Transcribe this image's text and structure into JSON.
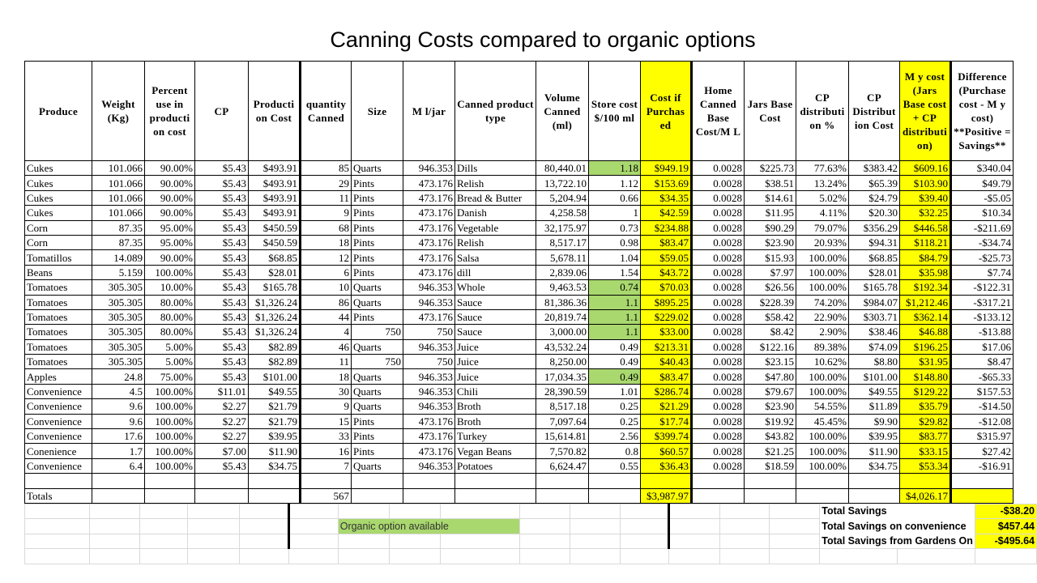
{
  "title": "Canning Costs compared to organic options",
  "colors": {
    "highlight_yellow": "#ffff00",
    "organic_green": "#a9d86e"
  },
  "columns": [
    "Produce",
    "Weight (Kg)",
    "Percent use in producti on cost",
    "CP",
    "Producti on Cost",
    "quantity Canned",
    "Size",
    "M l/jar",
    "Canned product type",
    "Volume Canned (ml)",
    "Store cost $/100 ml",
    "Cost if Purchas ed",
    "Home Canned Base Cost/M L",
    "Jars Base Cost",
    "CP distributi on %",
    "CP Distribut ion Cost",
    "M y cost (Jars Base cost + CP distributi on)",
    "Difference (Purchase cost - M y cost) **Positive = Savings**"
  ],
  "rows": [
    {
      "organic": true,
      "cells": [
        "Cukes",
        "101.066",
        "90.00%",
        "$5.43",
        "$493.91",
        "85",
        "Quarts",
        "946.353",
        "Dills",
        "80,440.01",
        "1.18",
        "$949.19",
        "0.0028",
        "$225.73",
        "77.63%",
        "$383.42",
        "$609.16",
        "$340.04"
      ]
    },
    {
      "organic": false,
      "cells": [
        "Cukes",
        "101.066",
        "90.00%",
        "$5.43",
        "$493.91",
        "29",
        "Pints",
        "473.176",
        "Relish",
        "13,722.10",
        "1.12",
        "$153.69",
        "0.0028",
        "$38.51",
        "13.24%",
        "$65.39",
        "$103.90",
        "$49.79"
      ]
    },
    {
      "organic": false,
      "cells": [
        "Cukes",
        "101.066",
        "90.00%",
        "$5.43",
        "$493.91",
        "11",
        "Pints",
        "473.176",
        "Bread & Butter",
        "5,204.94",
        "0.66",
        "$34.35",
        "0.0028",
        "$14.61",
        "5.02%",
        "$24.79",
        "$39.40",
        "-$5.05"
      ]
    },
    {
      "organic": false,
      "cells": [
        "Cukes",
        "101.066",
        "90.00%",
        "$5.43",
        "$493.91",
        "9",
        "Pints",
        "473.176",
        "Danish",
        "4,258.58",
        "1",
        "$42.59",
        "0.0028",
        "$11.95",
        "4.11%",
        "$20.30",
        "$32.25",
        "$10.34"
      ]
    },
    {
      "organic": false,
      "cells": [
        "Corn",
        "87.35",
        "95.00%",
        "$5.43",
        "$450.59",
        "68",
        "Pints",
        "473.176",
        "Vegetable",
        "32,175.97",
        "0.73",
        "$234.88",
        "0.0028",
        "$90.29",
        "79.07%",
        "$356.29",
        "$446.58",
        "-$211.69"
      ]
    },
    {
      "organic": false,
      "cells": [
        "Corn",
        "87.35",
        "95.00%",
        "$5.43",
        "$450.59",
        "18",
        "Pints",
        "473.176",
        "Relish",
        "8,517.17",
        "0.98",
        "$83.47",
        "0.0028",
        "$23.90",
        "20.93%",
        "$94.31",
        "$118.21",
        "-$34.74"
      ]
    },
    {
      "organic": false,
      "cells": [
        "Tomatillos",
        "14.089",
        "90.00%",
        "$5.43",
        "$68.85",
        "12",
        "Pints",
        "473.176",
        "Salsa",
        "5,678.11",
        "1.04",
        "$59.05",
        "0.0028",
        "$15.93",
        "100.00%",
        "$68.85",
        "$84.79",
        "-$25.73"
      ]
    },
    {
      "organic": false,
      "cells": [
        "Beans",
        "5.159",
        "100.00%",
        "$5.43",
        "$28.01",
        "6",
        "Pints",
        "473.176",
        "dill",
        "2,839.06",
        "1.54",
        "$43.72",
        "0.0028",
        "$7.97",
        "100.00%",
        "$28.01",
        "$35.98",
        "$7.74"
      ]
    },
    {
      "organic": true,
      "cells": [
        "Tomatoes",
        "305.305",
        "10.00%",
        "$5.43",
        "$165.78",
        "10",
        "Quarts",
        "946.353",
        "Whole",
        "9,463.53",
        "0.74",
        "$70.03",
        "0.0028",
        "$26.56",
        "100.00%",
        "$165.78",
        "$192.34",
        "-$122.31"
      ]
    },
    {
      "organic": true,
      "cells": [
        "Tomatoes",
        "305.305",
        "80.00%",
        "$5.43",
        "$1,326.24",
        "86",
        "Quarts",
        "946.353",
        "Sauce",
        "81,386.36",
        "1.1",
        "$895.25",
        "0.0028",
        "$228.39",
        "74.20%",
        "$984.07",
        "$1,212.46",
        "-$317.21"
      ]
    },
    {
      "organic": true,
      "cells": [
        "Tomatoes",
        "305.305",
        "80.00%",
        "$5.43",
        "$1,326.24",
        "44",
        "Pints",
        "473.176",
        "Sauce",
        "20,819.74",
        "1.1",
        "$229.02",
        "0.0028",
        "$58.42",
        "22.90%",
        "$303.71",
        "$362.14",
        "-$133.12"
      ]
    },
    {
      "organic": true,
      "cells": [
        "Tomatoes",
        "305.305",
        "80.00%",
        "$5.43",
        "$1,326.24",
        "4",
        "750",
        "750",
        "Sauce",
        "3,000.00",
        "1.1",
        "$33.00",
        "0.0028",
        "$8.42",
        "2.90%",
        "$38.46",
        "$46.88",
        "-$13.88"
      ]
    },
    {
      "organic": false,
      "cells": [
        "Tomatoes",
        "305.305",
        "5.00%",
        "$5.43",
        "$82.89",
        "46",
        "Quarts",
        "946.353",
        "Juice",
        "43,532.24",
        "0.49",
        "$213.31",
        "0.0028",
        "$122.16",
        "89.38%",
        "$74.09",
        "$196.25",
        "$17.06"
      ]
    },
    {
      "organic": false,
      "cells": [
        "Tomatoes",
        "305.305",
        "5.00%",
        "$5.43",
        "$82.89",
        "11",
        "750",
        "750",
        "Juice",
        "8,250.00",
        "0.49",
        "$40.43",
        "0.0028",
        "$23.15",
        "10.62%",
        "$8.80",
        "$31.95",
        "$8.47"
      ]
    },
    {
      "organic": true,
      "cells": [
        "Apples",
        "24.8",
        "75.00%",
        "$5.43",
        "$101.00",
        "18",
        "Quarts",
        "946.353",
        "Juice",
        "17,034.35",
        "0.49",
        "$83.47",
        "0.0028",
        "$47.80",
        "100.00%",
        "$101.00",
        "$148.80",
        "-$65.33"
      ]
    },
    {
      "organic": false,
      "cells": [
        "Convenience",
        "4.5",
        "100.00%",
        "$11.01",
        "$49.55",
        "30",
        "Quarts",
        "946.353",
        "Chili",
        "28,390.59",
        "1.01",
        "$286.74",
        "0.0028",
        "$79.67",
        "100.00%",
        "$49.55",
        "$129.22",
        "$157.53"
      ]
    },
    {
      "organic": false,
      "cells": [
        "Convenience",
        "9.6",
        "100.00%",
        "$2.27",
        "$21.79",
        "9",
        "Quarts",
        "946.353",
        "Broth",
        "8,517.18",
        "0.25",
        "$21.29",
        "0.0028",
        "$23.90",
        "54.55%",
        "$11.89",
        "$35.79",
        "-$14.50"
      ]
    },
    {
      "organic": false,
      "cells": [
        "Convenience",
        "9.6",
        "100.00%",
        "$2.27",
        "$21.79",
        "15",
        "Pints",
        "473.176",
        "Broth",
        "7,097.64",
        "0.25",
        "$17.74",
        "0.0028",
        "$19.92",
        "45.45%",
        "$9.90",
        "$29.82",
        "-$12.08"
      ]
    },
    {
      "organic": false,
      "cells": [
        "Convenience",
        "17.6",
        "100.00%",
        "$2.27",
        "$39.95",
        "33",
        "Pints",
        "473.176",
        "Turkey",
        "15,614.81",
        "2.56",
        "$399.74",
        "0.0028",
        "$43.82",
        "100.00%",
        "$39.95",
        "$83.77",
        "$315.97"
      ]
    },
    {
      "organic": false,
      "cells": [
        "Conenience",
        "1.7",
        "100.00%",
        "$7.00",
        "$11.90",
        "16",
        "Pints",
        "473.176",
        "Vegan Beans",
        "7,570.82",
        "0.8",
        "$60.57",
        "0.0028",
        "$21.25",
        "100.00%",
        "$11.90",
        "$33.15",
        "$27.42"
      ]
    },
    {
      "organic": false,
      "cells": [
        "Convenience",
        "6.4",
        "100.00%",
        "$5.43",
        "$34.75",
        "7",
        "Quarts",
        "946.353",
        "Potatoes",
        "6,624.47",
        "0.55",
        "$36.43",
        "0.0028",
        "$18.59",
        "100.00%",
        "$34.75",
        "$53.34",
        "-$16.91"
      ]
    }
  ],
  "totals": {
    "label": "Totals",
    "quantity": "567",
    "cost_if_purchased": "$3,987.97",
    "my_cost": "$4,026.17"
  },
  "legend": {
    "organic_label": "Organic option available"
  },
  "summary": [
    {
      "label": "Total Savings",
      "value": "-$38.20"
    },
    {
      "label": "Total Savings on convenience",
      "value": "$457.44"
    },
    {
      "label": "Total Savings from Gardens On",
      "value": "-$495.64"
    }
  ]
}
